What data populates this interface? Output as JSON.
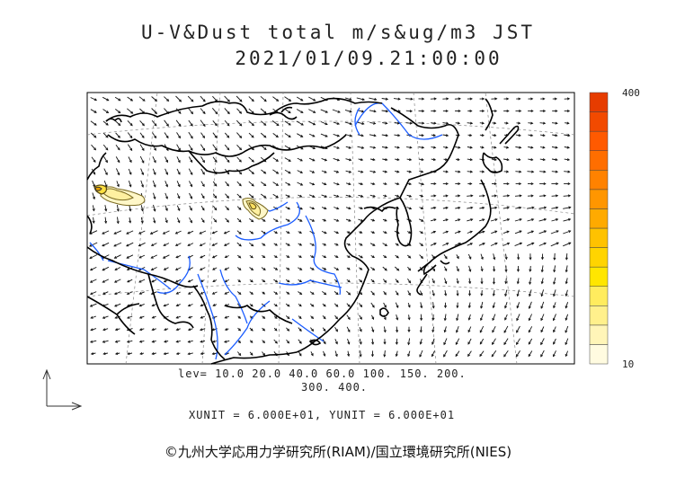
{
  "title": "U-V&Dust total m/s&ug/m3 JST",
  "datetime": "2021/01/09.21:00:00",
  "colorbar": {
    "max_label": "400",
    "min_label": "10",
    "colors": [
      "#fffbe0",
      "#fff5b8",
      "#fff08c",
      "#ffec5e",
      "#ffe600",
      "#ffd400",
      "#ffc200",
      "#ffaa00",
      "#ff9600",
      "#ff8200",
      "#ff6e00",
      "#ff5a00",
      "#f24a00",
      "#e63c00"
    ]
  },
  "contour_levels_line1": "lev= 10.0 20.0 40.0 60.0 100. 150. 200.",
  "contour_levels_line2": "300. 400.",
  "units_text": "XUNIT = 6.000E+01, YUNIT = 6.000E+01",
  "copyright": "©九州大学応用力学研究所(RIAM)/国立環境研究所(NIES)",
  "colors": {
    "coast": "#000000",
    "river": "#1a5cff",
    "arrow": "#111111",
    "grid": "#888888"
  }
}
